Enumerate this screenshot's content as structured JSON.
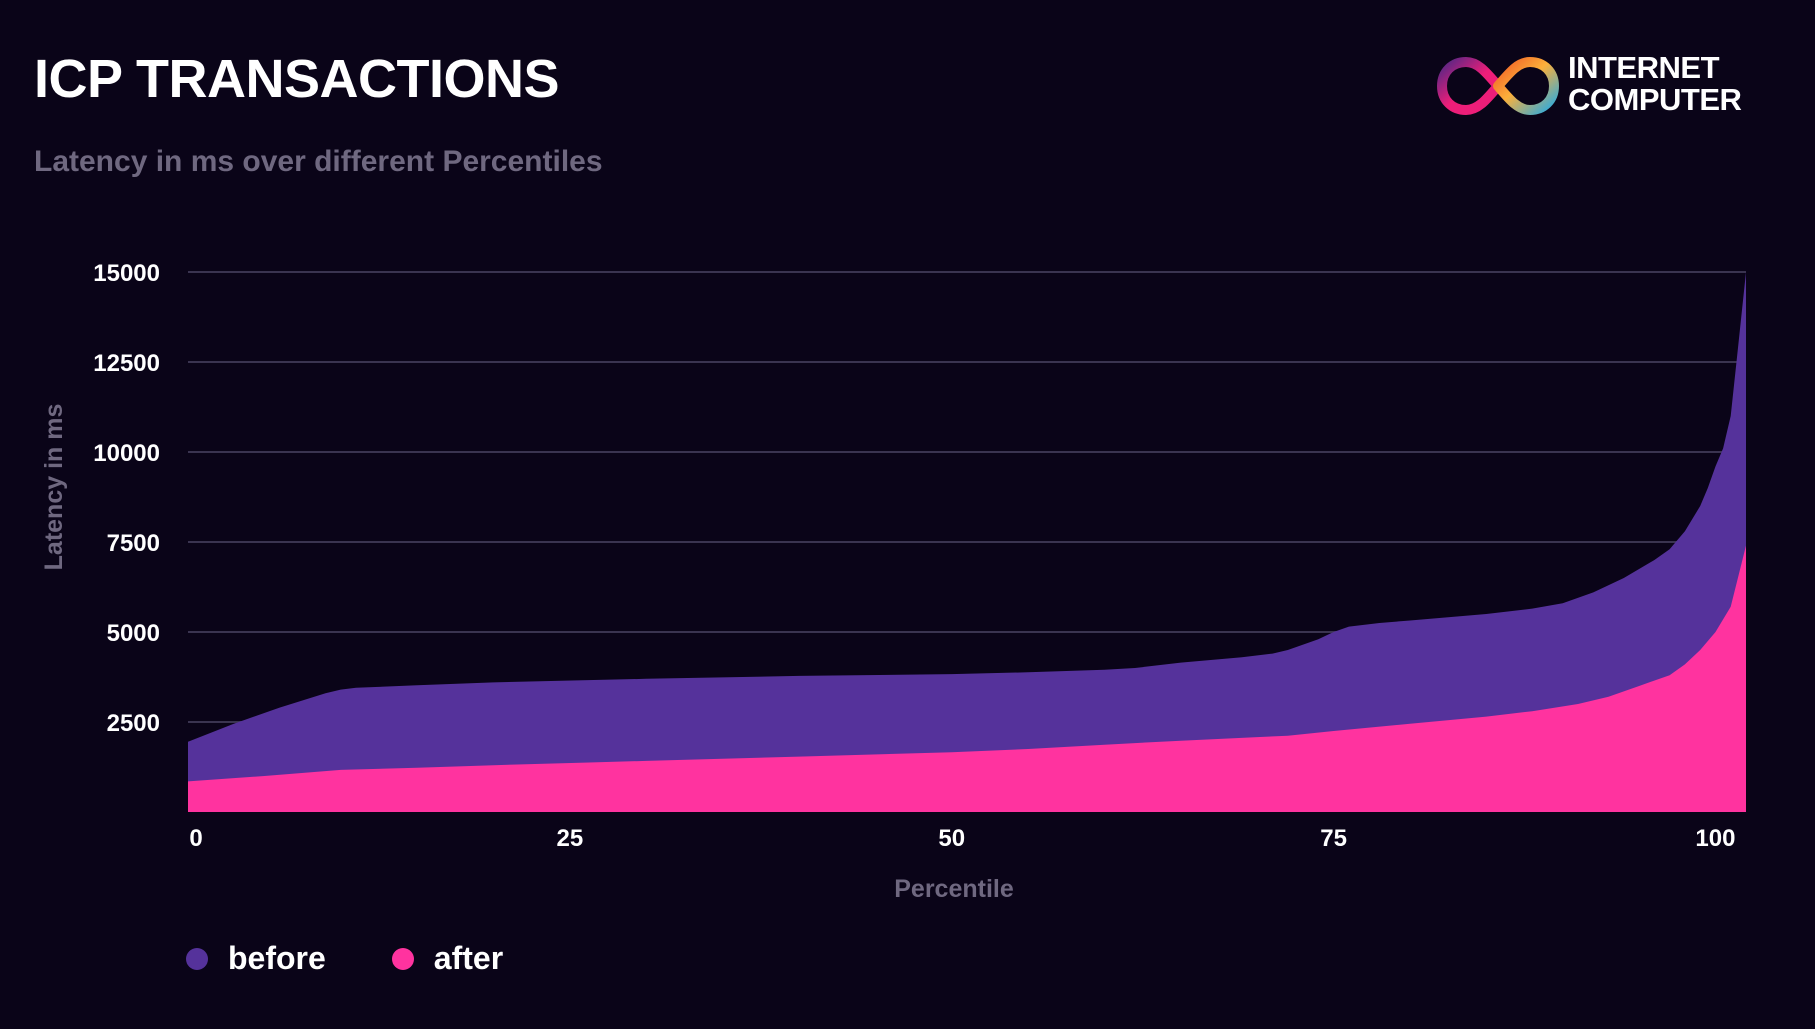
{
  "header": {
    "title": "ICP TRANSACTIONS",
    "subtitle": "Latency in ms over different Percentiles"
  },
  "logo": {
    "line1": "INTERNET",
    "line2": "COMPUTER"
  },
  "colors": {
    "background": "#0a0418",
    "before": "#55329b",
    "after": "#ff339f",
    "grid": "#3a3450",
    "axis_title": "#6f6880"
  },
  "chart_data": {
    "type": "area",
    "title": "ICP TRANSACTIONS",
    "subtitle": "Latency in ms over different Percentiles",
    "xlabel": "Percentile",
    "ylabel": "Latency in ms",
    "xlim": [
      0,
      102
    ],
    "ylim": [
      0,
      15000
    ],
    "x_ticks": [
      0,
      25,
      50,
      75,
      100
    ],
    "y_ticks": [
      2500,
      5000,
      7500,
      10000,
      12500,
      15000
    ],
    "grid": true,
    "legend_position": "bottom-left",
    "series": [
      {
        "name": "before",
        "x": [
          0,
          3,
          6,
          9,
          10,
          11,
          15,
          20,
          30,
          40,
          50,
          55,
          60,
          62,
          65,
          69,
          71,
          72,
          74,
          75,
          76,
          78,
          80,
          85,
          88,
          90,
          92,
          94,
          96,
          97,
          98,
          99,
          99.5,
          100,
          100.5,
          101,
          101.5,
          102
        ],
        "values": [
          1950,
          2450,
          2900,
          3300,
          3400,
          3450,
          3520,
          3600,
          3700,
          3780,
          3830,
          3880,
          3950,
          4000,
          4150,
          4300,
          4400,
          4500,
          4800,
          5000,
          5150,
          5250,
          5320,
          5500,
          5650,
          5800,
          6100,
          6500,
          7000,
          7300,
          7800,
          8500,
          9000,
          9600,
          10100,
          11000,
          13000,
          15000
        ]
      },
      {
        "name": "after",
        "x": [
          0,
          5,
          10,
          15,
          20,
          30,
          40,
          50,
          55,
          60,
          65,
          70,
          72,
          75,
          80,
          85,
          88,
          91,
          93,
          95,
          97,
          98,
          99,
          100,
          101,
          102
        ],
        "values": [
          850,
          1000,
          1170,
          1230,
          1300,
          1420,
          1540,
          1660,
          1750,
          1870,
          1980,
          2080,
          2120,
          2250,
          2450,
          2650,
          2800,
          3000,
          3200,
          3500,
          3800,
          4100,
          4500,
          5000,
          5700,
          7400
        ]
      }
    ]
  }
}
